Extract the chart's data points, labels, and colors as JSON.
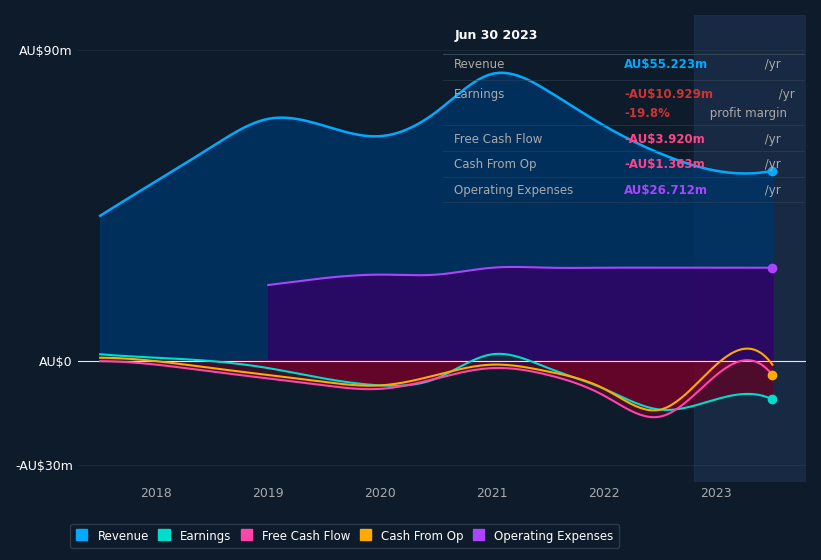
{
  "background_color": "#0d1b2a",
  "chart_bg": "#0d1b2a",
  "highlight_bg": "#1a2a3a",
  "title": "Jun 30 2023",
  "info_box": {
    "title": "Jun 30 2023",
    "rows": [
      {
        "label": "Revenue",
        "value": "AU$55.223m",
        "suffix": " /yr",
        "color": "#00aaff"
      },
      {
        "label": "Earnings",
        "value": "-AU$10.929m",
        "suffix": " /yr",
        "color": "#cc3333"
      },
      {
        "label": "",
        "value": "-19.8%",
        "suffix": " profit margin",
        "color": "#cc3333"
      },
      {
        "label": "Free Cash Flow",
        "value": "-AU$3.920m",
        "suffix": " /yr",
        "color": "#ff4488"
      },
      {
        "label": "Cash From Op",
        "value": "-AU$1.363m",
        "suffix": " /yr",
        "color": "#ff4488"
      },
      {
        "label": "Operating Expenses",
        "value": "AU$26.712m",
        "suffix": " /yr",
        "color": "#aa44ff"
      }
    ]
  },
  "x_years": [
    2017.5,
    2018.0,
    2018.5,
    2019.0,
    2019.5,
    2020.0,
    2020.5,
    2021.0,
    2021.5,
    2022.0,
    2022.5,
    2023.0,
    2023.5
  ],
  "revenue": [
    42,
    52,
    62,
    70,
    68,
    65,
    72,
    83,
    78,
    68,
    60,
    55,
    55
  ],
  "earnings": [
    2,
    1,
    0,
    -2,
    -5,
    -7,
    -5,
    2,
    -2,
    -8,
    -14,
    -11,
    -11
  ],
  "free_cash_flow": [
    0,
    -1,
    -3,
    -5,
    -7,
    -8,
    -5,
    -2,
    -4,
    -10,
    -16,
    -4,
    -4
  ],
  "cash_from_op": [
    1,
    0,
    -2,
    -4,
    -6,
    -7,
    -4,
    -1,
    -3,
    -8,
    -14,
    -1,
    -1
  ],
  "operating_expenses": [
    0,
    0,
    0,
    22,
    24,
    25,
    25,
    27,
    27,
    27,
    27,
    27,
    27
  ],
  "colors": {
    "revenue": "#00aaff",
    "earnings": "#00ddcc",
    "free_cash_flow": "#ff44aa",
    "cash_from_op": "#ffaa00",
    "operating_expenses": "#aa44ff"
  },
  "ylim": [
    -35,
    100
  ],
  "yticks": [
    -30,
    0,
    90
  ],
  "ytick_labels": [
    "-AU$30m",
    "AU$0",
    "AU$90m"
  ],
  "xlim": [
    2017.3,
    2023.8
  ],
  "xticks": [
    2018,
    2019,
    2020,
    2021,
    2022,
    2023
  ],
  "legend": [
    {
      "label": "Revenue",
      "color": "#00aaff"
    },
    {
      "label": "Earnings",
      "color": "#00ddcc"
    },
    {
      "label": "Free Cash Flow",
      "color": "#ff44aa"
    },
    {
      "label": "Cash From Op",
      "color": "#ffaa00"
    },
    {
      "label": "Operating Expenses",
      "color": "#aa44ff"
    }
  ],
  "highlight_x_start": 2022.8,
  "highlight_x_end": 2023.8
}
